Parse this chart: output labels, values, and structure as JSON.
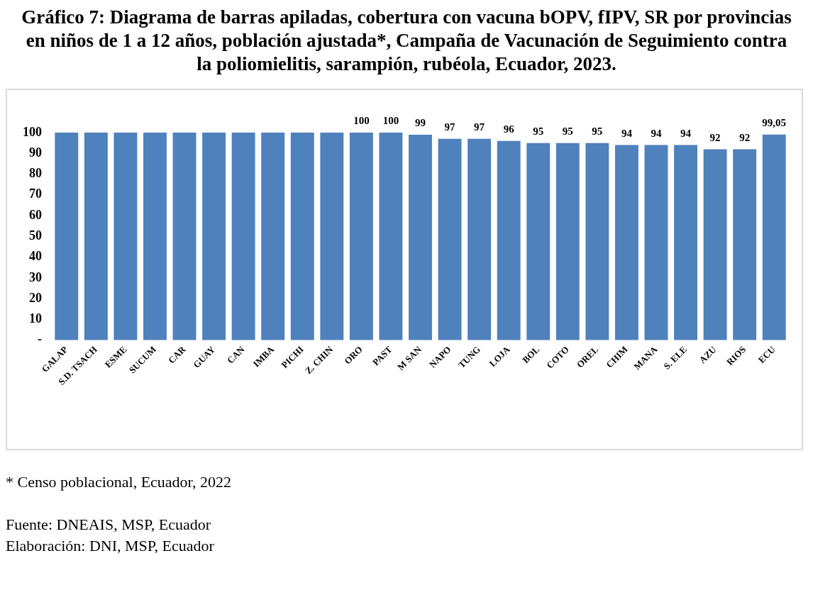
{
  "chart_data": {
    "type": "bar",
    "title": "Gráfico 7: Diagrama de barras apiladas, cobertura con vacuna bOPV, fIPV, SR por provincias en niños de 1 a 12 años, población ajustada*, Campaña de Vacunación de Seguimiento contra la poliomielitis, sarampión, rubéola, Ecuador, 2023.",
    "categories": [
      "GALAP",
      "S.D. TSACH",
      "ESME",
      "SUCUM",
      "CAR",
      "GUAY",
      "CAN",
      "IMBA",
      "PICHI",
      "Z. CHIN",
      "ORO",
      "PAST",
      "M SAN",
      "NAPO",
      "TUNG",
      "LOJA",
      "BOL",
      "COTO",
      "OREL",
      "CHIM",
      "MANA",
      "S. ELE",
      "AZU",
      "RIOS",
      "ECU"
    ],
    "values": [
      100,
      100,
      100,
      100,
      100,
      100,
      100,
      100,
      100,
      100,
      100,
      100,
      99,
      97,
      97,
      96,
      95,
      95,
      95,
      94,
      94,
      94,
      92,
      92,
      99.05
    ],
    "value_labels": [
      null,
      null,
      null,
      null,
      null,
      null,
      null,
      null,
      null,
      null,
      "100",
      "100",
      "99",
      "97",
      "97",
      "96",
      "95",
      "95",
      "95",
      "94",
      "94",
      "94",
      "92",
      "92",
      "99,05"
    ],
    "color": "#4f81bd",
    "ylim": [
      0,
      100
    ],
    "yticks": [
      {
        "value": 0,
        "label": "-"
      },
      10,
      20,
      30,
      40,
      50,
      60,
      70,
      80,
      90,
      100
    ],
    "grid": false,
    "legend": false,
    "annotations": [
      "* Censo poblacional, Ecuador, 2022",
      "Fuente: DNEAIS, MSP, Ecuador",
      "Elaboración: DNI, MSP, Ecuador"
    ]
  }
}
